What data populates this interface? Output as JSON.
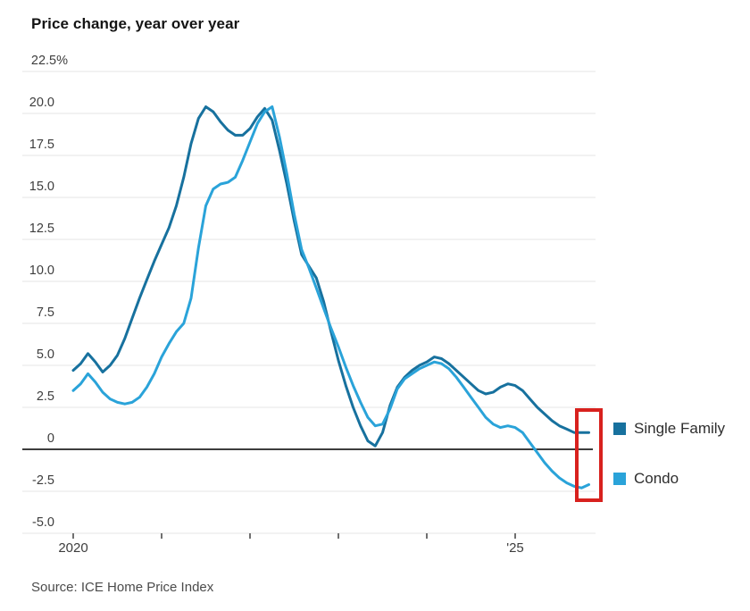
{
  "page": {
    "title": "Price change, year over year",
    "source": "Source: ICE Home Price Index"
  },
  "legend": {
    "items": [
      {
        "label": "Single Family",
        "color": "#17719e"
      },
      {
        "label": "Condo",
        "color": "#2aa3d9"
      }
    ]
  },
  "annotation": {
    "type": "highlight-box",
    "color": "#d8211e",
    "description": "red rectangle highlighting latest values of both series"
  },
  "chart_data": {
    "type": "line",
    "title": "Price change, year over year",
    "unit": "percent",
    "x_start": "2020-01",
    "x_frequency": "monthly",
    "x_axis": {
      "tick_months": [
        0,
        12,
        24,
        36,
        48,
        60
      ],
      "tick_labels": [
        "2020",
        "",
        "",
        "",
        "",
        "'25"
      ]
    },
    "y_axis": {
      "tick_values": [
        22.5,
        20.0,
        17.5,
        15.0,
        12.5,
        10.0,
        7.5,
        5.0,
        2.5,
        0,
        -2.5,
        -5.0
      ],
      "tick_labels": [
        "22.5%",
        "20.0",
        "17.5",
        "15.0",
        "12.5",
        "10.0",
        "7.5",
        "5.0",
        "2.5",
        "0",
        "-2.5",
        "-5.0"
      ],
      "range": [
        -5.0,
        22.5
      ],
      "zero_line": true,
      "grid": true
    },
    "legend_position": "right",
    "series": [
      {
        "name": "Single Family",
        "color": "#17719e",
        "values": [
          4.7,
          5.1,
          5.7,
          5.2,
          4.6,
          5.0,
          5.6,
          6.6,
          7.8,
          9.0,
          10.1,
          11.2,
          12.2,
          13.2,
          14.5,
          16.2,
          18.2,
          19.7,
          20.4,
          20.1,
          19.5,
          19.0,
          18.7,
          18.7,
          19.1,
          19.8,
          20.3,
          19.6,
          17.8,
          15.8,
          13.6,
          11.6,
          10.9,
          10.2,
          8.8,
          7.0,
          5.3,
          3.8,
          2.5,
          1.4,
          0.5,
          0.2,
          1.0,
          2.6,
          3.7,
          4.3,
          4.7,
          5.0,
          5.2,
          5.5,
          5.4,
          5.1,
          4.7,
          4.3,
          3.9,
          3.5,
          3.3,
          3.4,
          3.7,
          3.9,
          3.8,
          3.5,
          3.0,
          2.5,
          2.1,
          1.7,
          1.4,
          1.2,
          1.0,
          1.0,
          1.0
        ]
      },
      {
        "name": "Condo",
        "color": "#2aa3d9",
        "values": [
          3.5,
          3.9,
          4.5,
          4.0,
          3.4,
          3.0,
          2.8,
          2.7,
          2.8,
          3.1,
          3.7,
          4.5,
          5.5,
          6.3,
          7.0,
          7.5,
          9.0,
          12.0,
          14.5,
          15.5,
          15.8,
          15.9,
          16.2,
          17.2,
          18.3,
          19.4,
          20.1,
          20.4,
          18.6,
          16.4,
          14.0,
          11.9,
          10.8,
          9.6,
          8.4,
          7.2,
          6.1,
          4.9,
          3.8,
          2.8,
          1.9,
          1.4,
          1.5,
          2.4,
          3.6,
          4.2,
          4.5,
          4.8,
          5.0,
          5.2,
          5.1,
          4.8,
          4.3,
          3.7,
          3.1,
          2.5,
          1.9,
          1.5,
          1.3,
          1.4,
          1.3,
          1.0,
          0.4,
          -0.2,
          -0.8,
          -1.3,
          -1.7,
          -2.0,
          -2.2,
          -2.3,
          -2.1
        ]
      }
    ],
    "source": "Source: ICE Home Price Index"
  }
}
